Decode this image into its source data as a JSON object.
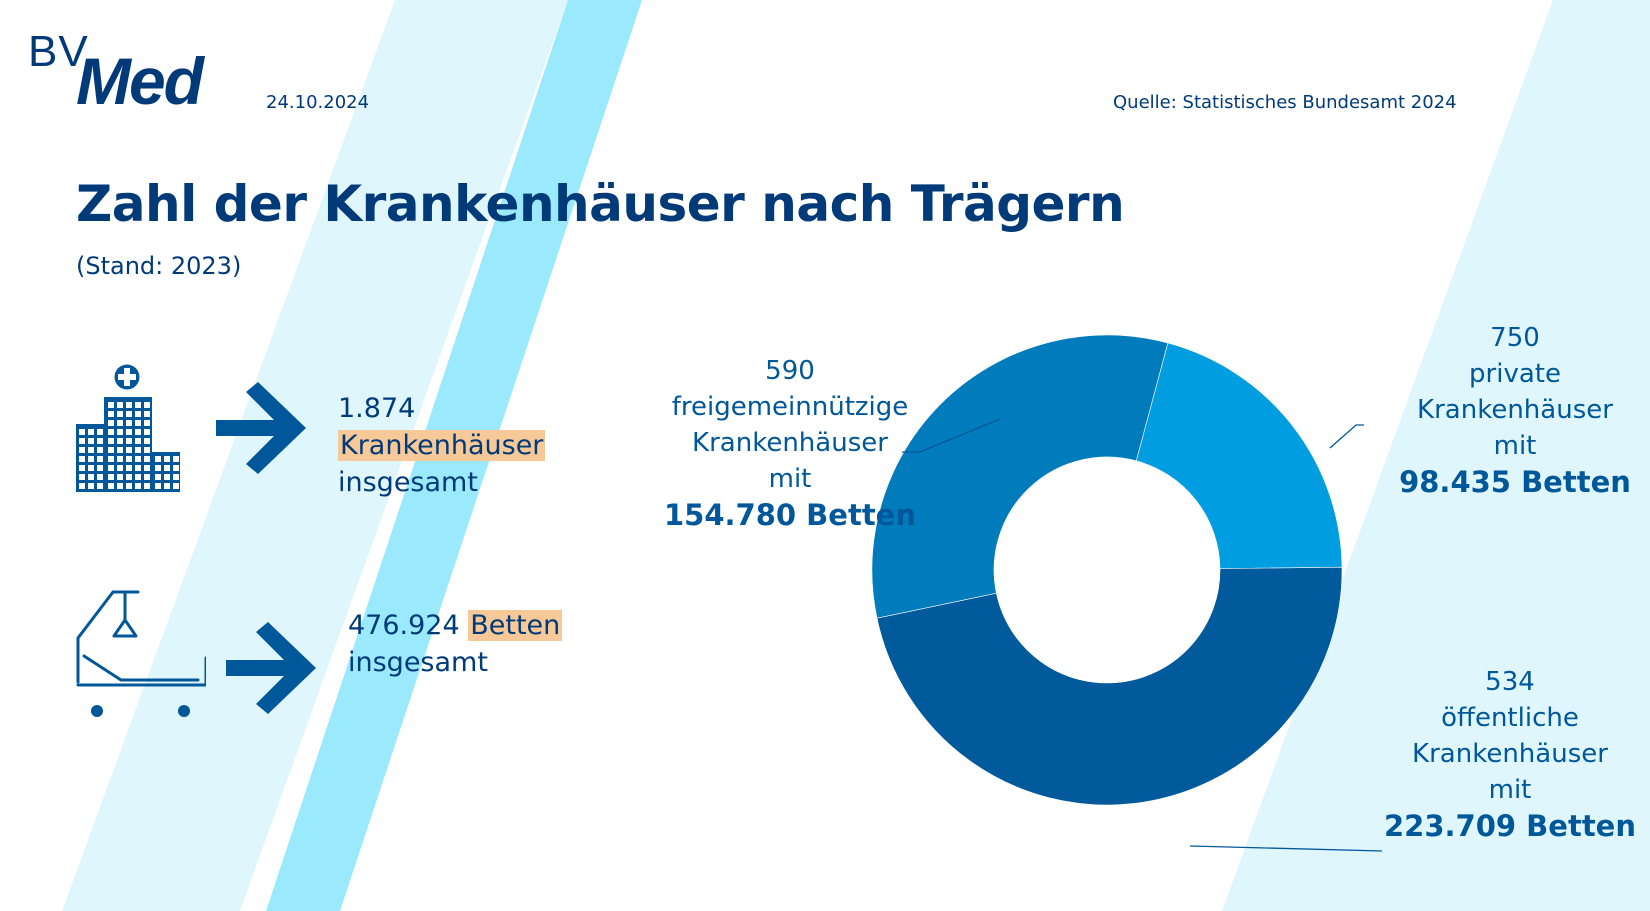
{
  "header": {
    "logo_top": "BV",
    "logo_main": "Med",
    "date": "24.10.2024",
    "source": "Quelle: Statistisches Bundesamt 2024"
  },
  "title": "Zahl der Krankenhäuser nach Trägern",
  "subtitle": "(Stand: 2023)",
  "stats": [
    {
      "icon": "hospital-building-icon",
      "value": "1.874",
      "highlight": "Krankenhäuser",
      "suffix": "insgesamt"
    },
    {
      "icon": "hospital-bed-icon",
      "value": "476.924",
      "highlight": "Betten",
      "suffix": "insgesamt"
    }
  ],
  "colors": {
    "text_dark": "#003a78",
    "label_blue": "#00579a",
    "highlight": "#f7c998",
    "stripe_pale": "#dff6fd",
    "stripe_bright": "#9ae9fd",
    "arrow": "#00579a"
  },
  "chart_data": {
    "type": "pie",
    "variant": "donut",
    "title": "Zahl der Krankenhäuser nach Trägern",
    "value_basis": "Betten",
    "total_hospitals": 1874,
    "total_beds": 476924,
    "slices": [
      {
        "key": "private",
        "hospitals": 750,
        "beds": 98435,
        "label_count": "750",
        "label_type": "private",
        "label_noun": "Krankenhäuser",
        "label_mit": "mit",
        "label_beds": "98.435 Betten",
        "color": "#009ee0"
      },
      {
        "key": "oeffentliche",
        "hospitals": 534,
        "beds": 223709,
        "label_count": "534",
        "label_type": "öffentliche",
        "label_noun": "Krankenhäuser",
        "label_mit": "mit",
        "label_beds": "223.709 Betten",
        "color": "#005a9b"
      },
      {
        "key": "freigemeinnuetzige",
        "hospitals": 590,
        "beds": 154780,
        "label_count": "590",
        "label_type": "freigemeinnützige",
        "label_noun": "Krankenhäuser",
        "label_mit": "mit",
        "label_beds": "154.780 Betten",
        "color": "#007cbd"
      }
    ],
    "legend": "none (direct labels)"
  }
}
